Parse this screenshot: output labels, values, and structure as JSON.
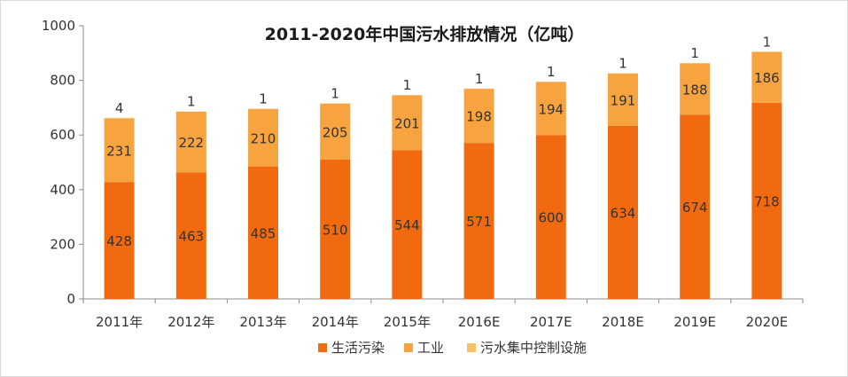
{
  "chart_data": {
    "type": "bar",
    "stacked": true,
    "title": "2011-2020年中国污水排放情况（亿吨）",
    "categories": [
      "2011年",
      "2012年",
      "2013年",
      "2014年",
      "2015年",
      "2016E",
      "2017E",
      "2018E",
      "2019E",
      "2020E"
    ],
    "series": [
      {
        "name": "生活污染",
        "color": "#f26a10",
        "values": [
          428,
          463,
          485,
          510,
          544,
          571,
          600,
          634,
          674,
          718
        ]
      },
      {
        "name": "工业",
        "color": "#f7a33f",
        "values": [
          231,
          222,
          210,
          205,
          201,
          198,
          194,
          191,
          188,
          186
        ]
      },
      {
        "name": "污水集中控制设施",
        "color": "#f9c36b",
        "values": [
          4,
          1,
          1,
          1,
          1,
          1,
          1,
          1,
          1,
          1
        ]
      }
    ],
    "ylim": [
      0,
      1000
    ],
    "yticks": [
      0,
      200,
      400,
      600,
      800,
      1000
    ],
    "xlabel": "",
    "ylabel": "",
    "grid": false,
    "legend_position": "bottom"
  }
}
